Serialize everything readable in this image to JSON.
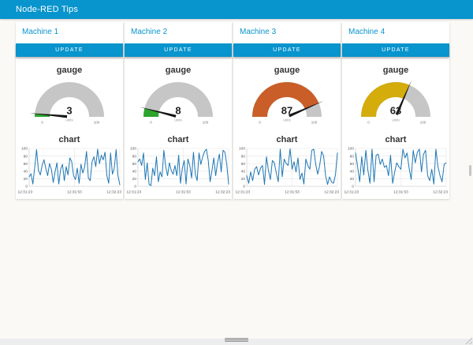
{
  "header": {
    "title": "Node-RED Tips"
  },
  "colors": {
    "accent": "#0894CD",
    "gauge_track": "#C6C6C6",
    "needle": "#151515",
    "chart_line": "#1F77B4",
    "grid": "#E4E4E4",
    "axis": "#D6D6D6",
    "tick_text": "#555555"
  },
  "machines": [
    {
      "title": "Machine 1",
      "button_label": "UPDATE",
      "gauge": {
        "title": "gauge",
        "value": 3,
        "min": 0,
        "max": 100,
        "min_label": "0",
        "max_label": "100",
        "units_label": "units",
        "color": "#2CA42C"
      },
      "chart": {
        "type": "line",
        "title": "chart",
        "x_ticks": [
          "12:31:23",
          "12:31:53",
          "12:32:23"
        ],
        "y_ticks": [
          0,
          20,
          40,
          60,
          80,
          100
        ],
        "ymin": 0,
        "ymax": 100,
        "values": [
          25,
          33,
          6,
          50,
          97,
          42,
          30,
          55,
          70,
          48,
          28,
          60,
          45,
          10,
          38,
          62,
          6,
          45,
          58,
          15,
          52,
          30,
          75,
          65,
          28,
          18,
          48,
          8,
          58,
          35,
          52,
          92,
          22,
          15,
          65,
          78,
          52,
          98,
          60,
          82,
          70,
          90,
          28,
          8,
          88,
          32,
          48,
          97,
          28,
          4
        ]
      }
    },
    {
      "title": "Machine 2",
      "button_label": "UPDATE",
      "gauge": {
        "title": "gauge",
        "value": 8,
        "min": 0,
        "max": 100,
        "min_label": "0",
        "max_label": "100",
        "units_label": "units",
        "color": "#2CA42C"
      },
      "chart": {
        "type": "line",
        "title": "chart",
        "x_ticks": [
          "12:31:23",
          "12:31:53",
          "12:32:23"
        ],
        "y_ticks": [
          0,
          20,
          40,
          60,
          80,
          100
        ],
        "ymin": 0,
        "ymax": 100,
        "values": [
          65,
          72,
          55,
          88,
          18,
          62,
          5,
          2,
          48,
          28,
          78,
          12,
          38,
          25,
          95,
          52,
          28,
          62,
          42,
          32,
          55,
          28,
          82,
          8,
          48,
          68,
          6,
          72,
          55,
          22,
          90,
          32,
          15,
          88,
          58,
          78,
          92,
          98,
          68,
          12,
          42,
          75,
          28,
          62,
          85,
          38,
          95,
          90,
          58,
          6
        ]
      }
    },
    {
      "title": "Machine 3",
      "button_label": "UPDATE",
      "gauge": {
        "title": "gauge",
        "value": 87,
        "min": 0,
        "max": 100,
        "min_label": "0",
        "max_label": "100",
        "units_label": "units",
        "color": "#C95E28"
      },
      "chart": {
        "type": "line",
        "title": "chart",
        "x_ticks": [
          "12:31:23",
          "12:31:53",
          "12:32:23"
        ],
        "y_ticks": [
          0,
          20,
          40,
          60,
          80,
          100
        ],
        "ymin": 0,
        "ymax": 100,
        "values": [
          28,
          8,
          38,
          15,
          45,
          52,
          30,
          48,
          55,
          5,
          78,
          42,
          18,
          68,
          62,
          35,
          12,
          98,
          25,
          72,
          60,
          55,
          99,
          45,
          65,
          38,
          75,
          18,
          35,
          6,
          72,
          55,
          45,
          95,
          98,
          58,
          32,
          55,
          92,
          80,
          28,
          5,
          25,
          12,
          8,
          30,
          88
        ]
      }
    },
    {
      "title": "Machine 4",
      "button_label": "UPDATE",
      "gauge": {
        "title": "gauge",
        "value": 63,
        "min": 0,
        "max": 100,
        "min_label": "0",
        "max_label": "100",
        "units_label": "units",
        "color": "#D4AC0B"
      },
      "chart": {
        "type": "line",
        "title": "chart",
        "x_ticks": [
          "12:31:23",
          "12:31:53",
          "12:32:23"
        ],
        "y_ticks": [
          0,
          20,
          40,
          60,
          80,
          100
        ],
        "ymin": 0,
        "ymax": 100,
        "values": [
          88,
          52,
          12,
          78,
          30,
          95,
          42,
          8,
          98,
          12,
          82,
          85,
          58,
          72,
          50,
          55,
          28,
          82,
          8,
          38,
          62,
          52,
          45,
          98,
          75,
          88,
          48,
          18,
          95,
          62,
          90,
          98,
          38,
          85,
          95,
          28,
          15,
          45,
          6,
          98,
          52,
          28,
          12,
          58,
          62
        ]
      }
    }
  ]
}
